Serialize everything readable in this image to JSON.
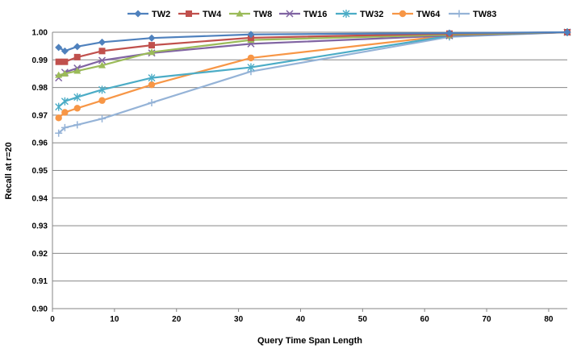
{
  "chart_data": {
    "type": "line",
    "title": "",
    "xlabel": "Query Time Span Length",
    "ylabel": "Recall at r=20",
    "xlim": [
      0,
      83
    ],
    "ylim": [
      0.9,
      1.0
    ],
    "xticks": [
      "0",
      "10",
      "20",
      "30",
      "40",
      "50",
      "60",
      "70",
      "80"
    ],
    "yticks": [
      "0.90",
      "0.91",
      "0.92",
      "0.93",
      "0.94",
      "0.95",
      "0.96",
      "0.97",
      "0.98",
      "0.99",
      "1.00"
    ],
    "grid": true,
    "legend_position": "top",
    "x": [
      1,
      2,
      4,
      8,
      16,
      32,
      64,
      83
    ],
    "series": [
      {
        "name": "TW2",
        "color": "#4F81BD",
        "marker": "diamond",
        "values": [
          0.9945,
          0.9932,
          0.9948,
          0.9964,
          0.9979,
          0.9992,
          0.9997,
          1.0
        ]
      },
      {
        "name": "TW4",
        "color": "#C0504D",
        "marker": "square",
        "values": [
          0.9893,
          0.9893,
          0.991,
          0.9932,
          0.9953,
          0.998,
          0.9995,
          1.0
        ]
      },
      {
        "name": "TW8",
        "color": "#9BBB59",
        "marker": "triangle",
        "values": [
          0.9845,
          0.985,
          0.986,
          0.988,
          0.9928,
          0.9972,
          0.9991,
          1.0
        ]
      },
      {
        "name": "TW16",
        "color": "#8064A2",
        "marker": "x",
        "values": [
          0.9835,
          0.9855,
          0.987,
          0.9898,
          0.9925,
          0.9958,
          0.9988,
          1.0
        ]
      },
      {
        "name": "TW32",
        "color": "#4BACC6",
        "marker": "star",
        "values": [
          0.973,
          0.975,
          0.9765,
          0.9792,
          0.9835,
          0.9873,
          0.9987,
          1.0
        ]
      },
      {
        "name": "TW64",
        "color": "#F79646",
        "marker": "circle",
        "values": [
          0.969,
          0.971,
          0.9725,
          0.9753,
          0.981,
          0.9907,
          0.9988,
          1.0
        ]
      },
      {
        "name": "TW83",
        "color": "#95B3D7",
        "marker": "plus",
        "values": [
          0.9635,
          0.9655,
          0.9665,
          0.9687,
          0.9745,
          0.9858,
          0.9983,
          1.0
        ]
      }
    ]
  }
}
